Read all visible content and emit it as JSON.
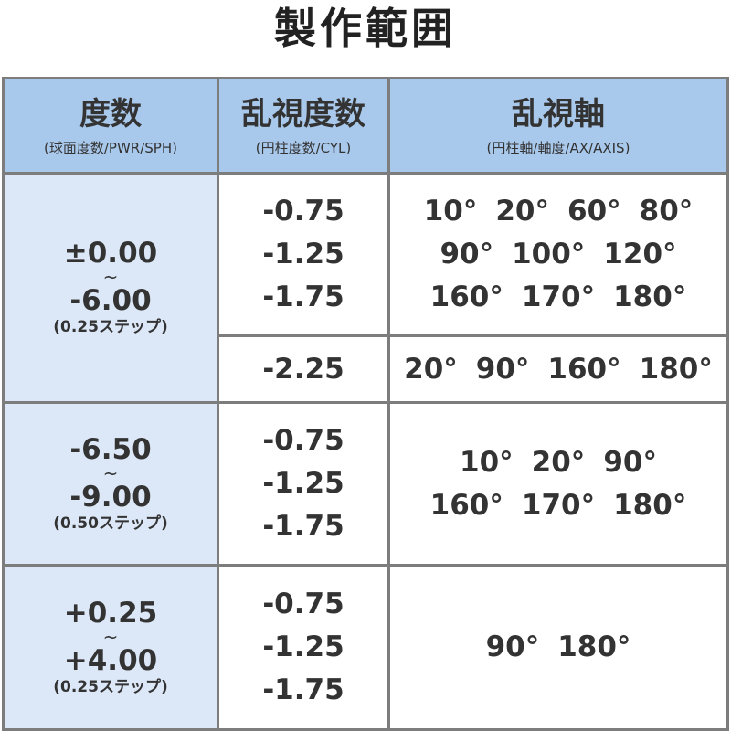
{
  "title": "製作範囲",
  "header": {
    "sph": {
      "main": "度数",
      "sub": "(球面度数/PWR/SPH)"
    },
    "cyl": {
      "main": "乱視度数",
      "sub": "(円柱度数/CYL)"
    },
    "axis": {
      "main": "乱視軸",
      "sub": "(円柱軸/軸度/AX/AXIS)"
    }
  },
  "rows": [
    {
      "sph_from": "±0.00",
      "tilde": "~",
      "sph_to": "-6.00",
      "step": "(0.25ステップ)",
      "groups": [
        {
          "cyl": [
            "-0.75",
            "-1.25",
            "-1.75"
          ],
          "axis": [
            [
              "10°",
              "20°",
              "60°",
              "80°"
            ],
            [
              "90°",
              "100°",
              "120°"
            ],
            [
              "160°",
              "170°",
              "180°"
            ]
          ]
        },
        {
          "cyl": [
            "-2.25"
          ],
          "axis": [
            [
              "20°",
              "90°",
              "160°",
              "180°"
            ]
          ]
        }
      ]
    },
    {
      "sph_from": "-6.50",
      "tilde": "~",
      "sph_to": "-9.00",
      "step": "(0.50ステップ)",
      "groups": [
        {
          "cyl": [
            "-0.75",
            "-1.25",
            "-1.75"
          ],
          "axis": [
            [
              "10°",
              "20°",
              "90°"
            ],
            [
              "160°",
              "170°",
              "180°"
            ]
          ]
        }
      ]
    },
    {
      "sph_from": "+0.25",
      "tilde": "~",
      "sph_to": "+4.00",
      "step": "(0.25ステップ)",
      "groups": [
        {
          "cyl": [
            "-0.75",
            "-1.25",
            "-1.75"
          ],
          "axis": [
            [
              "90°",
              "180°"
            ]
          ]
        }
      ]
    }
  ],
  "colors": {
    "header_bg": "#a9c9ec",
    "sph_bg": "#dce8f7",
    "border": "#7d7d7d",
    "text": "#333333"
  }
}
